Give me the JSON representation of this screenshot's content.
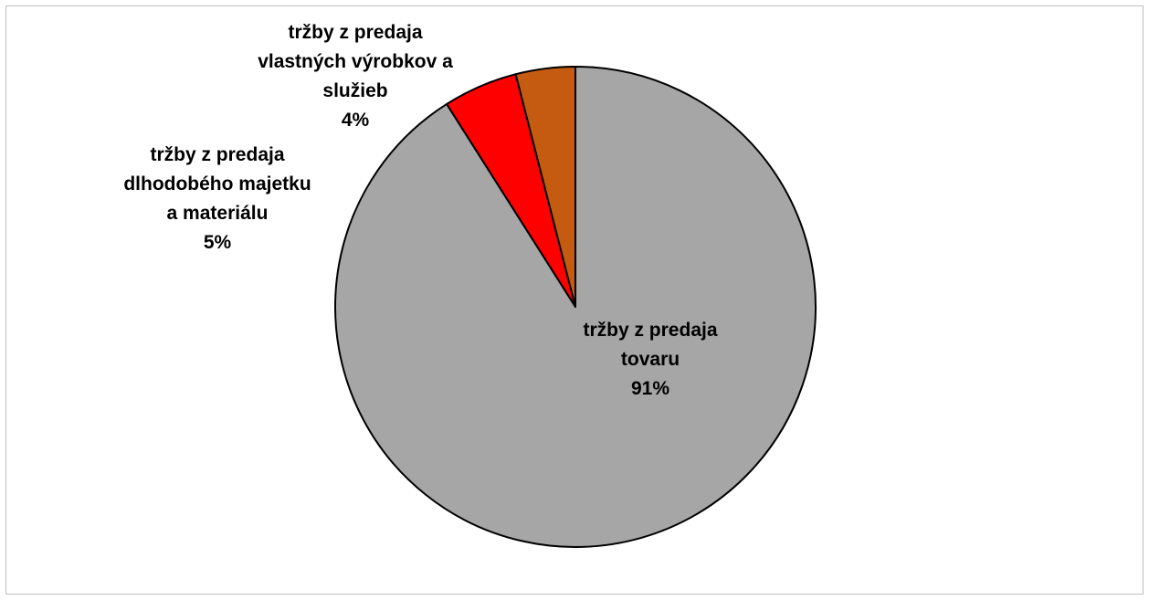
{
  "chart_data": {
    "type": "pie",
    "title": "",
    "legend": "none",
    "slices": [
      {
        "name": "tržby z predaja tovaru",
        "value": 91,
        "percent_label": "91%",
        "label_lines": [
          "tržby z predaja",
          "tovaru",
          "91%"
        ],
        "color": "#a6a6a6"
      },
      {
        "name": "tržby z predaja dlhodobého majetku a materiálu",
        "value": 5,
        "percent_label": "5%",
        "label_lines": [
          "tržby z predaja",
          "dlhodobého majetku",
          "a materiálu",
          "5%"
        ],
        "color": "#ff0000"
      },
      {
        "name": "tržby z predaja vlastných výrobkov a služieb",
        "value": 4,
        "percent_label": "4%",
        "label_lines": [
          "tržby z predaja",
          "vlastných výrobkov a",
          "služieb",
          "4%"
        ],
        "color": "#c55a11"
      }
    ]
  }
}
